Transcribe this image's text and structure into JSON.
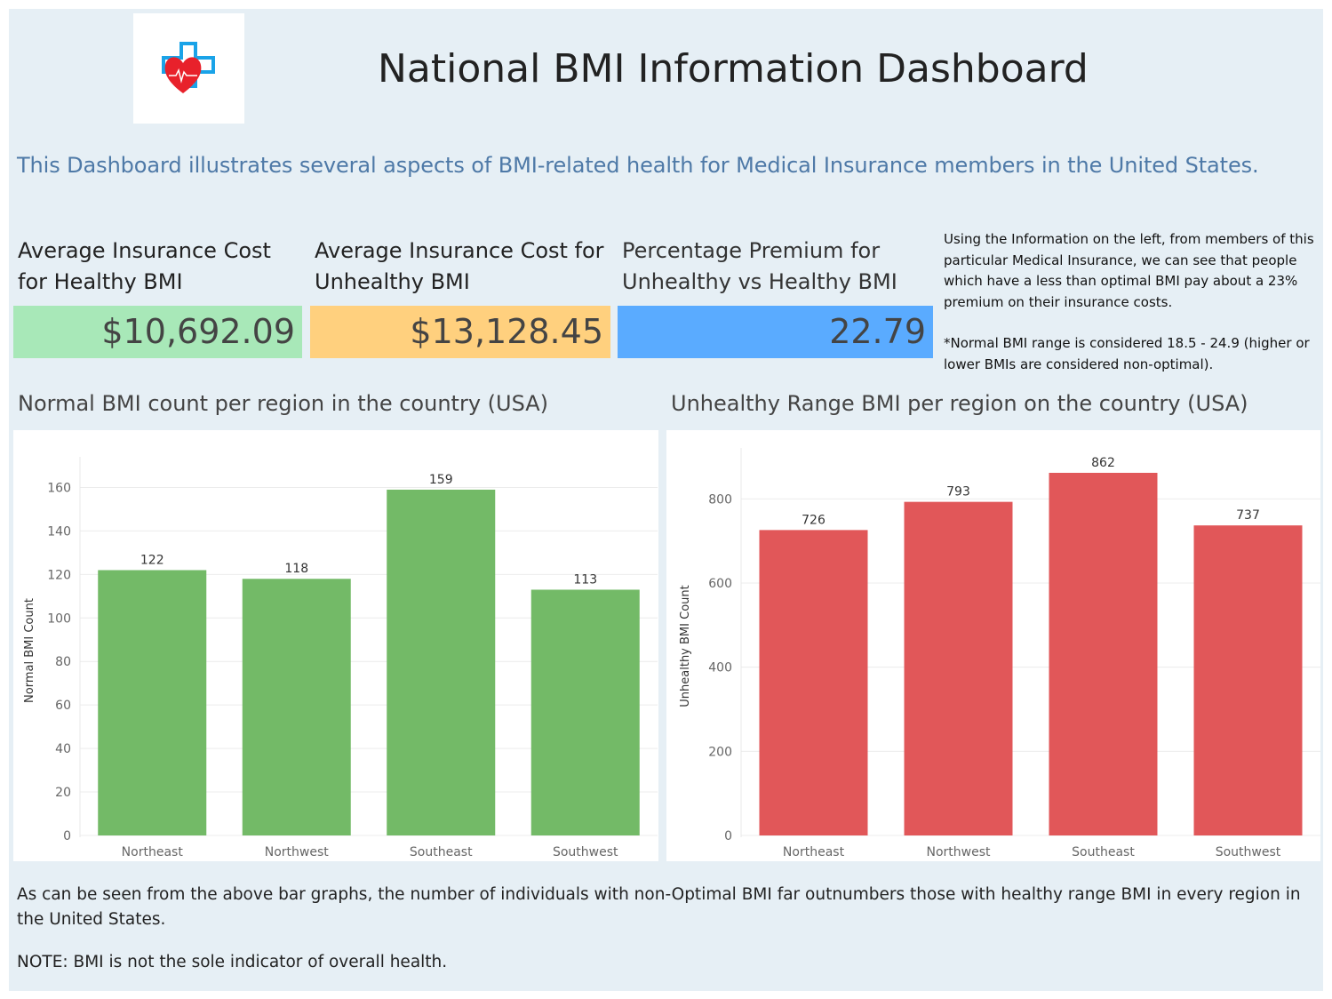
{
  "header": {
    "title": "National BMI Information Dashboard",
    "subtitle": "This Dashboard illustrates several aspects of BMI-related health for Medical Insurance members in the United States."
  },
  "logo": {
    "icon": "medical-heart-cross-icon",
    "colors": {
      "cross": "#1aa3e8",
      "heart": "#e8212b"
    }
  },
  "kpis": [
    {
      "label_line1": "Average Insurance Cost",
      "label_line2": "for Healthy BMI",
      "value": "$10,692.09",
      "color": "#a8e8b8"
    },
    {
      "label_line1": "Average Insurance Cost for",
      "label_line2": "Unhealthy BMI",
      "value": "$13,128.45",
      "color": "#ffd07e"
    },
    {
      "label_line1": "Percentage Premium for",
      "label_line2": "Unhealthy vs Healthy BMI",
      "value": "22.79",
      "color": "#5aabff"
    }
  ],
  "note": {
    "paragraph1": "Using the Information on the left, from members of this particular Medical Insurance, we can see that people which have a less than optimal BMI pay about a 23% premium on their insurance costs.",
    "paragraph2": "*Normal BMI range is considered 18.5 - 24.9 (higher or lower BMIs are considered non-optimal)."
  },
  "chart_data": [
    {
      "type": "bar",
      "title": "Normal BMI count per region in the country (USA)",
      "categories": [
        "Northeast",
        "Northwest",
        "Southeast",
        "Southwest"
      ],
      "values": [
        122,
        118,
        159,
        113
      ],
      "ylabel": "Normal BMI Count",
      "xlabel": "",
      "ylim": [
        0,
        170
      ],
      "yticks": [
        0,
        20,
        40,
        60,
        80,
        100,
        120,
        140,
        160
      ],
      "color": "#73ba67",
      "grid": true,
      "data_labels": true
    },
    {
      "type": "bar",
      "title": "Unhealthy Range BMI per region on the country (USA)",
      "categories": [
        "Northeast",
        "Northwest",
        "Southeast",
        "Southwest"
      ],
      "values": [
        726,
        793,
        862,
        737
      ],
      "ylabel": "Unhealthy BMI Count",
      "xlabel": "",
      "ylim": [
        0,
        900
      ],
      "yticks": [
        0,
        200,
        400,
        600,
        800
      ],
      "color": "#e15759",
      "grid": true,
      "data_labels": true
    }
  ],
  "footer": {
    "text": "As can be seen from the above bar graphs, the number of individuals with non-Optimal BMI far outnumbers those with healthy range BMI in every region in the United States.",
    "note": "NOTE: BMI is not the sole indicator of overall health."
  }
}
